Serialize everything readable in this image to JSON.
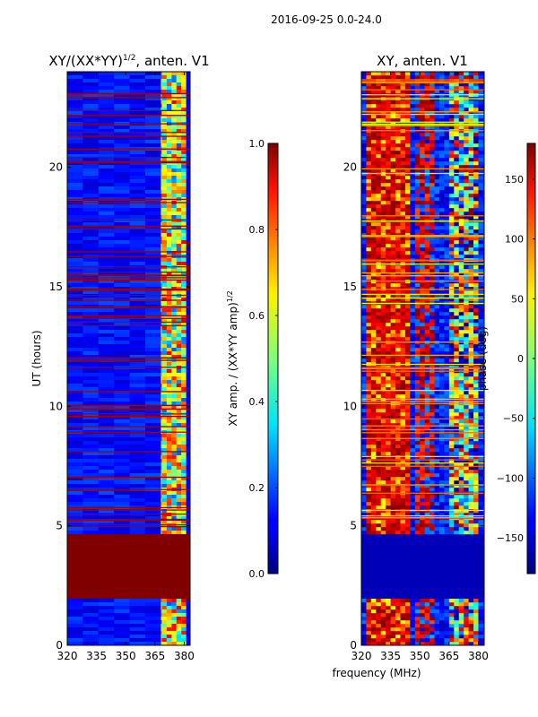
{
  "figure": {
    "suptitle": "2016-09-25 0.0-24.0",
    "xlabel_shared": "frequency (MHz)"
  },
  "chart_data": [
    {
      "type": "heatmap",
      "title": "XY/(XX*YY)",
      "title_sup": "1/2",
      "title_suffix": ", anten. V1",
      "xlabel": "",
      "ylabel": "UT (hours)",
      "xlim": [
        320,
        383
      ],
      "ylim": [
        0,
        24
      ],
      "xticks": [
        "320",
        "335",
        "350",
        "365",
        "380"
      ],
      "xtick_values": [
        320,
        335,
        350,
        365,
        380
      ],
      "yticks": [
        "0",
        "5",
        "10",
        "15",
        "20"
      ],
      "ytick_values": [
        0,
        5,
        10,
        15,
        20
      ],
      "colorbar": {
        "label": "XY amp. / (XX*YY amp)",
        "label_sup": "1/2",
        "range": [
          0.0,
          1.0
        ],
        "ticks": [
          "0.0",
          "0.2",
          "0.4",
          "0.6",
          "0.8",
          "1.0"
        ],
        "tick_values": [
          0.0,
          0.2,
          0.4,
          0.6,
          0.8,
          1.0
        ],
        "colormap": "jet"
      },
      "regions": [
        {
          "name": "background",
          "freq": [
            320,
            383
          ],
          "ut": [
            0,
            24
          ],
          "value": 0.12
        },
        {
          "name": "band-365-380",
          "freq": [
            361,
            380
          ],
          "ut": [
            0,
            24
          ],
          "value": 0.55
        },
        {
          "name": "saturated-block",
          "freq": [
            320,
            383
          ],
          "ut": [
            1.9,
            4.7
          ],
          "value": 1.0
        },
        {
          "name": "saturated-block-2",
          "freq": [
            320,
            383
          ],
          "ut": [
            15.5,
            15.9
          ],
          "value": 1.0
        },
        {
          "name": "saturated-block-3",
          "freq": [
            320,
            383
          ],
          "ut": [
            14.9,
            15.1
          ],
          "value": 1.0
        },
        {
          "name": "saturated-block-4",
          "freq": [
            320,
            383
          ],
          "ut": [
            16.7,
            16.9
          ],
          "value": 1.0
        }
      ]
    },
    {
      "type": "heatmap",
      "title": "XY, anten. V1",
      "xlabel": "frequency (MHz)",
      "ylabel": "",
      "xlim": [
        320,
        383
      ],
      "ylim": [
        0,
        24
      ],
      "xticks": [
        "320",
        "335",
        "350",
        "365",
        "380"
      ],
      "xtick_values": [
        320,
        335,
        350,
        365,
        380
      ],
      "yticks": [
        "0",
        "5",
        "10",
        "15",
        "20"
      ],
      "ytick_values": [
        0,
        5,
        10,
        15,
        20
      ],
      "colorbar": {
        "label": "phase (deg)",
        "range": [
          -180,
          180
        ],
        "ticks": [
          "−150",
          "−100",
          "−50",
          "0",
          "50",
          "100",
          "150"
        ],
        "tick_values": [
          -150,
          -100,
          -50,
          0,
          50,
          100,
          150
        ],
        "colormap": "jet"
      },
      "regions": [
        {
          "name": "background",
          "freq": [
            320,
            383
          ],
          "ut": [
            0,
            24
          ],
          "value": -150
        },
        {
          "name": "red-band-low",
          "freq": [
            322,
            343
          ],
          "ut": [
            4.8,
            24
          ],
          "value": 150
        },
        {
          "name": "red-band-mid",
          "freq": [
            346,
            357
          ],
          "ut": [
            4.8,
            24
          ],
          "value": 120
        },
        {
          "name": "mixed-band",
          "freq": [
            363,
            380
          ],
          "ut": [
            4.8,
            24
          ],
          "value": 30
        },
        {
          "name": "blank-block",
          "freq": [
            320,
            383
          ],
          "ut": [
            1.9,
            4.7
          ],
          "value": -160
        }
      ]
    }
  ]
}
